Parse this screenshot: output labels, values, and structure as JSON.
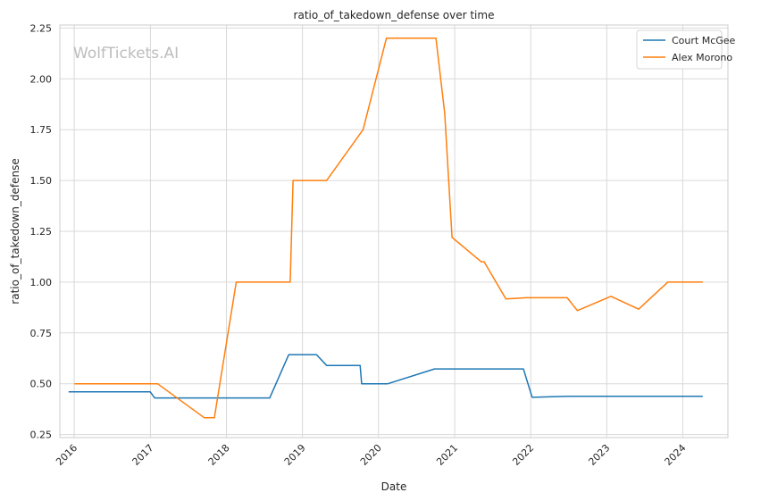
{
  "chart_data": {
    "type": "line",
    "title": "ratio_of_takedown_defense over time",
    "xlabel": "Date",
    "ylabel": "ratio_of_takedown_defense",
    "watermark": "WolfTickets.AI",
    "x_ticks": [
      "2016",
      "2017",
      "2018",
      "2019",
      "2020",
      "2021",
      "2022",
      "2023",
      "2024"
    ],
    "y_ticks": [
      "0.25",
      "0.50",
      "0.75",
      "1.00",
      "1.25",
      "1.50",
      "1.75",
      "2.00",
      "2.25"
    ],
    "xlim": [
      "2015-10-24",
      "2024-08-05"
    ],
    "ylim": [
      0.235,
      2.265
    ],
    "grid": true,
    "legend_position": "top-right",
    "series": [
      {
        "name": "Court McGee",
        "color": "#1f77b4",
        "points": [
          [
            "2015-12-05",
            0.46
          ],
          [
            "2016-12-31",
            0.46
          ],
          [
            "2017-01-21",
            0.43
          ],
          [
            "2018-07-28",
            0.43
          ],
          [
            "2018-10-27",
            0.643
          ],
          [
            "2019-03-09",
            0.643
          ],
          [
            "2019-04-27",
            0.59
          ],
          [
            "2019-10-05",
            0.59
          ],
          [
            "2019-10-12",
            0.5
          ],
          [
            "2020-02-15",
            0.5
          ],
          [
            "2020-09-26",
            0.573
          ],
          [
            "2021-11-27",
            0.573
          ],
          [
            "2022-01-08",
            0.433
          ],
          [
            "2022-06-25",
            0.438
          ],
          [
            "2024-04-06",
            0.438
          ]
        ]
      },
      {
        "name": "Alex Morono",
        "color": "#ff7f0e",
        "points": [
          [
            "2016-01-02",
            0.5
          ],
          [
            "2017-02-04",
            0.5
          ],
          [
            "2017-09-16",
            0.333
          ],
          [
            "2017-11-04",
            0.333
          ],
          [
            "2018-02-17",
            1.0
          ],
          [
            "2018-11-03",
            1.0
          ],
          [
            "2018-11-17",
            1.5
          ],
          [
            "2019-04-27",
            1.5
          ],
          [
            "2019-10-19",
            1.75
          ],
          [
            "2020-02-08",
            2.2
          ],
          [
            "2020-10-03",
            2.2
          ],
          [
            "2020-11-14",
            1.83
          ],
          [
            "2020-12-19",
            1.22
          ],
          [
            "2021-05-08",
            1.1
          ],
          [
            "2021-05-22",
            1.1
          ],
          [
            "2021-09-04",
            0.917
          ],
          [
            "2021-12-11",
            0.923
          ],
          [
            "2022-06-25",
            0.923
          ],
          [
            "2022-08-13",
            0.86
          ],
          [
            "2023-01-21",
            0.93
          ],
          [
            "2023-06-03",
            0.867
          ],
          [
            "2023-10-21",
            1.0
          ],
          [
            "2024-04-06",
            1.0
          ]
        ]
      }
    ]
  }
}
